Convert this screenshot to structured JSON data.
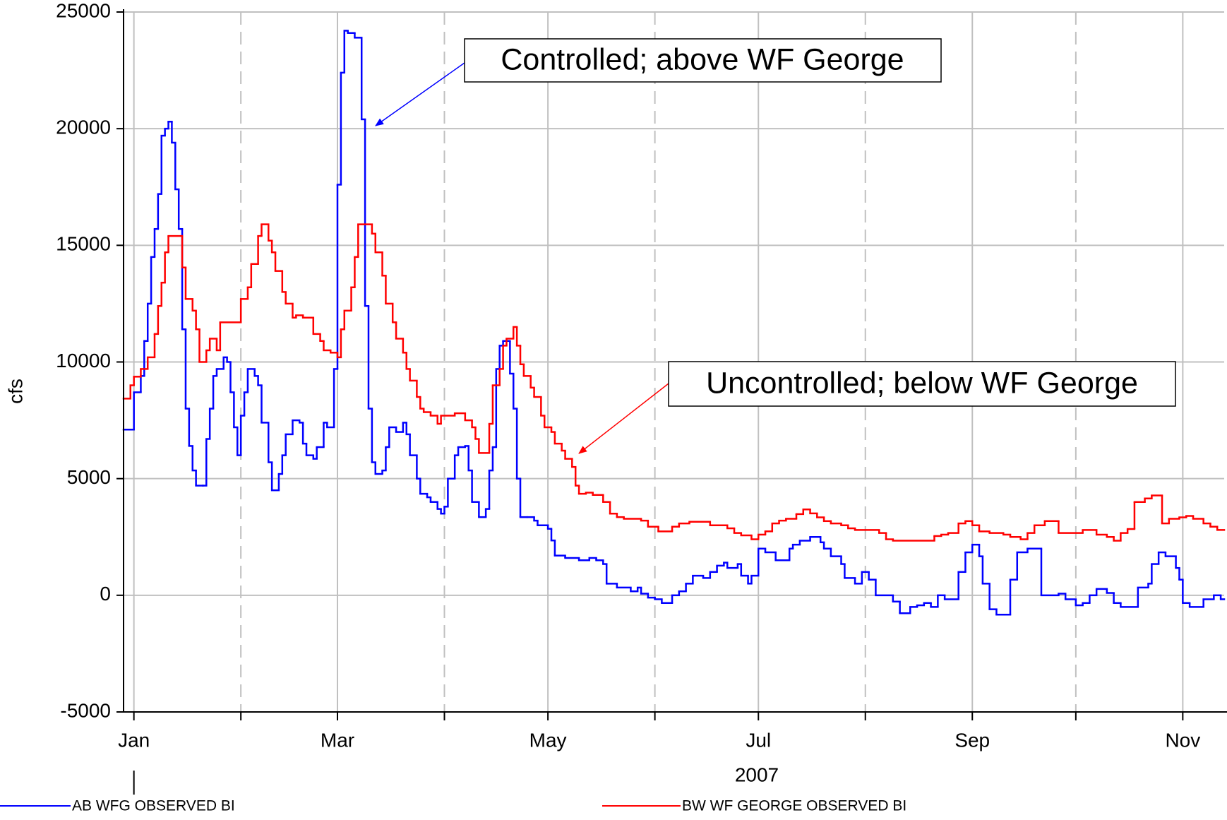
{
  "chart_data": {
    "type": "line",
    "step": true,
    "ylabel": "cfs",
    "xlabel": "2007",
    "xlim": [
      -3,
      316
    ],
    "ylim": [
      -5000,
      25000
    ],
    "yticks": [
      -5000,
      0,
      5000,
      10000,
      15000,
      20000,
      25000
    ],
    "xticks": [
      {
        "value": 0,
        "label": "Jan"
      },
      {
        "value": 59,
        "label": "Mar"
      },
      {
        "value": 120,
        "label": "May"
      },
      {
        "value": 181,
        "label": "Jul"
      },
      {
        "value": 243,
        "label": "Sep"
      },
      {
        "value": 304,
        "label": "Nov"
      }
    ],
    "xminor_ticks": [
      31,
      90,
      151,
      212,
      273
    ],
    "grid": true,
    "legend": "bottom",
    "annotations": [
      {
        "text": "Controlled; above WF George"
      },
      {
        "text": "Uncontrolled; below WF George"
      }
    ],
    "series": [
      {
        "name": "AB WFG OBSERVED BI",
        "color": "#0000ff",
        "x": [
          -3,
          0,
          2,
          3,
          4,
          5,
          6,
          7,
          8,
          9,
          10,
          11,
          12,
          13,
          14,
          15,
          16,
          17,
          18,
          20,
          21,
          22,
          23,
          24,
          26,
          27,
          28,
          29,
          30,
          31,
          32,
          33,
          35,
          36,
          37,
          39,
          40,
          42,
          43,
          44,
          46,
          48,
          49,
          50,
          52,
          53,
          55,
          56,
          58,
          59,
          60,
          61,
          62,
          64,
          66,
          67,
          68,
          69,
          70,
          72,
          73,
          74,
          76,
          78,
          79,
          80,
          82,
          83,
          85,
          86,
          88,
          89,
          90,
          91,
          93,
          94,
          96,
          97,
          98,
          100,
          102,
          103,
          104,
          105,
          106,
          107,
          109,
          110,
          111,
          112,
          114,
          116,
          117,
          120,
          121,
          122,
          125,
          129,
          132,
          134,
          136,
          137,
          140,
          144,
          146,
          147,
          149,
          151,
          153,
          156,
          158,
          160,
          162,
          165,
          167,
          169,
          171,
          172,
          175,
          176,
          178,
          179,
          181,
          183,
          186,
          190,
          191,
          193,
          196,
          199,
          200,
          202,
          205,
          206,
          209,
          211,
          213,
          215,
          220,
          222,
          225,
          227,
          229,
          231,
          233,
          235,
          239,
          241,
          243,
          245,
          246,
          248,
          250,
          254,
          256,
          259,
          263,
          268,
          270,
          273,
          275,
          277,
          279,
          282,
          284,
          286,
          291,
          294,
          295,
          297,
          299,
          302,
          303,
          304,
          306,
          310,
          313,
          315
        ],
        "values": [
          7100,
          8700,
          9400,
          10900,
          12500,
          14500,
          15700,
          17200,
          19700,
          20000,
          20300,
          19400,
          17400,
          15700,
          11400,
          8000,
          6400,
          5350,
          4700,
          4700,
          6700,
          8000,
          9400,
          9700,
          10200,
          10000,
          8700,
          7200,
          6000,
          7700,
          8700,
          9700,
          9400,
          9000,
          7400,
          5700,
          4500,
          5200,
          6000,
          6900,
          7500,
          7400,
          6500,
          6000,
          5850,
          6350,
          7400,
          7200,
          9700,
          17600,
          22400,
          24200,
          24100,
          23900,
          20400,
          12400,
          8000,
          5700,
          5200,
          5350,
          6350,
          7200,
          7000,
          7400,
          6900,
          6000,
          5000,
          4350,
          4200,
          4000,
          3700,
          3500,
          3800,
          5000,
          6000,
          6350,
          6400,
          5350,
          4000,
          3350,
          3700,
          5350,
          6350,
          9700,
          10700,
          10900,
          9500,
          8000,
          5000,
          3350,
          3350,
          3200,
          3000,
          2850,
          2350,
          1700,
          1600,
          1500,
          1600,
          1500,
          1340,
          500,
          330,
          170,
          330,
          70,
          -100,
          -170,
          -330,
          0,
          170,
          500,
          840,
          740,
          1000,
          1270,
          1400,
          1170,
          1340,
          840,
          500,
          840,
          2000,
          1840,
          1500,
          2000,
          2170,
          2340,
          2500,
          2270,
          2000,
          1670,
          1340,
          740,
          500,
          1000,
          670,
          0,
          -270,
          -770,
          -500,
          -430,
          -330,
          -500,
          0,
          -170,
          1000,
          1840,
          2170,
          1670,
          500,
          -600,
          -830,
          670,
          1840,
          2000,
          0,
          70,
          -170,
          -430,
          -330,
          0,
          270,
          100,
          -330,
          -500,
          330,
          500,
          1340,
          1840,
          1670,
          1170,
          670,
          -330,
          -500,
          -170,
          0,
          -170
        ]
      },
      {
        "name": "BW WF GEORGE OBSERVED BI",
        "color": "#ff0000",
        "x": [
          -3,
          -1,
          0,
          2,
          4,
          6,
          7,
          8,
          9,
          10,
          14,
          15,
          17,
          18,
          19,
          21,
          22,
          24,
          25,
          31,
          33,
          34,
          36,
          37,
          39,
          40,
          41,
          43,
          44,
          46,
          47,
          49,
          52,
          54,
          55,
          57,
          59,
          60,
          61,
          63,
          64,
          65,
          69,
          70,
          72,
          73,
          75,
          76,
          78,
          79,
          80,
          82,
          83,
          84,
          86,
          88,
          89,
          93,
          96,
          98,
          99,
          100,
          103,
          104,
          106,
          107,
          108,
          110,
          111,
          112,
          113,
          115,
          116,
          118,
          119,
          121,
          122,
          124,
          125,
          127,
          128,
          129,
          131,
          133,
          136,
          138,
          140,
          142,
          147,
          149,
          152,
          156,
          158,
          161,
          167,
          172,
          174,
          176,
          179,
          181,
          183,
          185,
          187,
          189,
          192,
          194,
          196,
          198,
          200,
          202,
          205,
          207,
          209,
          216,
          218,
          220,
          232,
          234,
          236,
          239,
          241,
          243,
          245,
          248,
          252,
          254,
          257,
          259,
          261,
          264,
          268,
          275,
          279,
          282,
          284,
          286,
          288,
          290,
          293,
          295,
          298,
          300,
          303,
          305,
          307,
          310,
          312,
          314
        ],
        "values": [
          8430,
          9000,
          9370,
          9700,
          10200,
          11200,
          12400,
          13400,
          14700,
          15400,
          14050,
          12700,
          12200,
          11400,
          10000,
          10500,
          11000,
          10500,
          11700,
          12700,
          13200,
          14200,
          15400,
          15900,
          15200,
          14700,
          13900,
          13000,
          12500,
          11900,
          12000,
          11900,
          11200,
          10900,
          10500,
          10400,
          10200,
          11400,
          12200,
          13200,
          14500,
          15900,
          15500,
          14700,
          13700,
          12500,
          11700,
          11000,
          10400,
          9700,
          9200,
          8500,
          8000,
          7850,
          7700,
          7350,
          7700,
          7800,
          7500,
          7200,
          6700,
          6100,
          7350,
          9000,
          9700,
          10700,
          11000,
          11500,
          10700,
          9900,
          9400,
          8900,
          8500,
          7700,
          7200,
          7000,
          6500,
          6200,
          5850,
          5500,
          4700,
          4350,
          4400,
          4300,
          4000,
          3500,
          3350,
          3280,
          3200,
          2940,
          2740,
          2940,
          3080,
          3150,
          3000,
          2870,
          2670,
          2570,
          2400,
          2600,
          2740,
          3080,
          3200,
          3280,
          3480,
          3680,
          3510,
          3340,
          3180,
          3080,
          3000,
          2870,
          2800,
          2670,
          2400,
          2340,
          2540,
          2600,
          2670,
          3080,
          3180,
          3000,
          2740,
          2670,
          2600,
          2500,
          2400,
          2670,
          3000,
          3180,
          2670,
          2800,
          2600,
          2500,
          2340,
          2670,
          2840,
          4000,
          4150,
          4280,
          3080,
          3280,
          3340,
          3400,
          3280,
          3080,
          2940,
          2800
        ]
      }
    ]
  }
}
